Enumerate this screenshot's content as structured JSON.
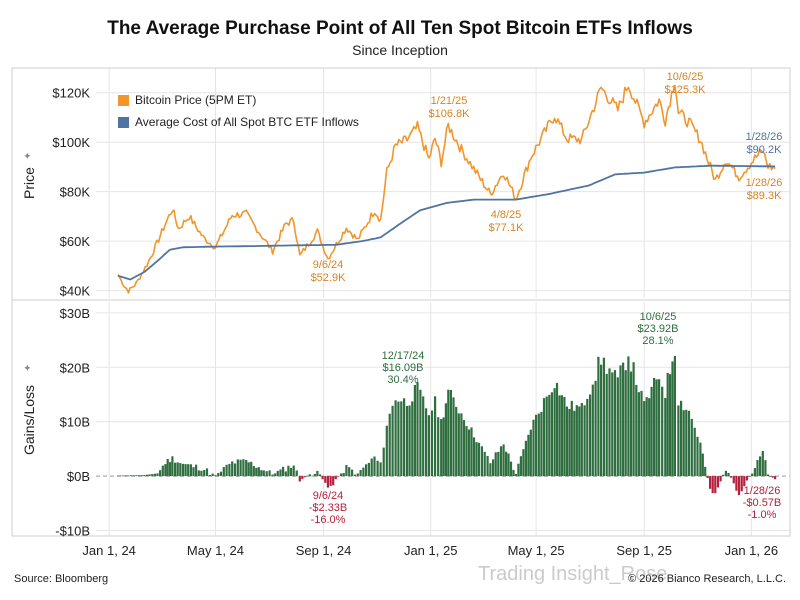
{
  "title": "The Average Purchase Point of All Ten Spot Bitcoin ETFs Inflows",
  "subtitle": "Since Inception",
  "source": "Source: Bloomberg",
  "copyright": "© 2026 Bianco Research, L.L.C.",
  "watermark": "Trading Insight_Rose",
  "colors": {
    "price": "#f0962d",
    "cost": "#4f74a0",
    "gain": "#2f6e3f",
    "loss": "#b5203c",
    "axis_label_gain": "#2f6e3f",
    "axis_label_loss": "#b5203c",
    "price_annot": "#d88420",
    "cost_annot": "#4f74a0"
  },
  "chart_data": [
    {
      "type": "line",
      "ylabel": "Price",
      "ylim": [
        37000,
        130000
      ],
      "yticks": [
        40000,
        60000,
        80000,
        100000,
        120000
      ],
      "ytick_labels": [
        "$40K",
        "$60K",
        "$80K",
        "$100K",
        "$120K"
      ],
      "xlim": [
        "2024-01-11",
        "2026-01-31"
      ],
      "xticks": [
        "2024-01-01",
        "2024-05-01",
        "2024-09-01",
        "2025-01-01",
        "2025-05-01",
        "2025-09-01",
        "2026-01-01"
      ],
      "xtick_labels": [
        "Jan 1, 24",
        "May 1, 24",
        "Sep 1, 24",
        "Jan 1, 25",
        "May 1, 25",
        "Sep 1, 25",
        "Jan 1, 26"
      ],
      "legend_position": "top-left",
      "series": [
        {
          "name": "Bitcoin Price (5PM ET)",
          "points": [
            [
              "2024-01-11",
              46500
            ],
            [
              "2024-01-18",
              42000
            ],
            [
              "2024-01-23",
              39800
            ],
            [
              "2024-02-01",
              43000
            ],
            [
              "2024-02-15",
              51800
            ],
            [
              "2024-02-28",
              62000
            ],
            [
              "2024-03-05",
              67000
            ],
            [
              "2024-03-13",
              73000
            ],
            [
              "2024-03-20",
              65000
            ],
            [
              "2024-04-01",
              70000
            ],
            [
              "2024-04-17",
              61500
            ],
            [
              "2024-05-01",
              57500
            ],
            [
              "2024-05-20",
              70500
            ],
            [
              "2024-06-05",
              71000
            ],
            [
              "2024-06-25",
              61000
            ],
            [
              "2024-07-05",
              56000
            ],
            [
              "2024-07-20",
              67000
            ],
            [
              "2024-07-29",
              68500
            ],
            [
              "2024-08-05",
              54000
            ],
            [
              "2024-08-25",
              64000
            ],
            [
              "2024-09-06",
              52900
            ],
            [
              "2024-09-27",
              65500
            ],
            [
              "2024-10-10",
              60500
            ],
            [
              "2024-10-29",
              72500
            ],
            [
              "2024-11-05",
              68500
            ],
            [
              "2024-11-12",
              88000
            ],
            [
              "2024-11-22",
              98500
            ],
            [
              "2024-12-05",
              101000
            ],
            [
              "2024-12-17",
              106000
            ],
            [
              "2024-12-30",
              93000
            ],
            [
              "2025-01-06",
              101500
            ],
            [
              "2025-01-13",
              92000
            ],
            [
              "2025-01-21",
              106800
            ],
            [
              "2025-02-05",
              97000
            ],
            [
              "2025-02-25",
              86000
            ],
            [
              "2025-03-10",
              79000
            ],
            [
              "2025-03-25",
              88000
            ],
            [
              "2025-04-08",
              77100
            ],
            [
              "2025-04-25",
              94000
            ],
            [
              "2025-05-22",
              111000
            ],
            [
              "2025-06-05",
              101500
            ],
            [
              "2025-06-22",
              101000
            ],
            [
              "2025-07-14",
              122000
            ],
            [
              "2025-08-02",
              113000
            ],
            [
              "2025-08-14",
              123500
            ],
            [
              "2025-09-01",
              108000
            ],
            [
              "2025-09-18",
              117000
            ],
            [
              "2025-09-25",
              109000
            ],
            [
              "2025-10-06",
              125300
            ],
            [
              "2025-10-10",
              112000
            ],
            [
              "2025-10-22",
              108000
            ],
            [
              "2025-11-04",
              101000
            ],
            [
              "2025-11-21",
              84500
            ],
            [
              "2025-12-03",
              93000
            ],
            [
              "2025-12-18",
              86000
            ],
            [
              "2026-01-05",
              93500
            ],
            [
              "2026-01-14",
              96500
            ],
            [
              "2026-01-20",
              90500
            ],
            [
              "2026-01-28",
              89300
            ]
          ]
        },
        {
          "name": "Average Cost of All Spot BTC ETF Inflows",
          "points": [
            [
              "2024-01-11",
              46000
            ],
            [
              "2024-01-25",
              44500
            ],
            [
              "2024-02-10",
              47500
            ],
            [
              "2024-02-25",
              52000
            ],
            [
              "2024-03-10",
              56500
            ],
            [
              "2024-03-25",
              57500
            ],
            [
              "2024-05-01",
              57800
            ],
            [
              "2024-06-15",
              58000
            ],
            [
              "2024-08-01",
              58300
            ],
            [
              "2024-09-15",
              58500
            ],
            [
              "2024-10-15",
              60000
            ],
            [
              "2024-11-05",
              61500
            ],
            [
              "2024-11-25",
              66500
            ],
            [
              "2024-12-20",
              72500
            ],
            [
              "2025-01-20",
              75500
            ],
            [
              "2025-02-20",
              76800
            ],
            [
              "2025-04-08",
              76800
            ],
            [
              "2025-05-15",
              79000
            ],
            [
              "2025-06-30",
              82500
            ],
            [
              "2025-07-30",
              87000
            ],
            [
              "2025-09-01",
              87700
            ],
            [
              "2025-10-06",
              89800
            ],
            [
              "2025-11-15",
              90500
            ],
            [
              "2026-01-28",
              90200
            ]
          ]
        }
      ],
      "annotations": [
        {
          "date": "2024-09-06",
          "label": "9/6/24",
          "value": "$52.9K",
          "series": "price"
        },
        {
          "date": "2025-01-21",
          "label": "1/21/25",
          "value": "$106.8K",
          "series": "price"
        },
        {
          "date": "2025-04-08",
          "label": "4/8/25",
          "value": "$77.1K",
          "series": "price"
        },
        {
          "date": "2025-10-06",
          "label": "10/6/25",
          "value": "$125.3K",
          "series": "price"
        },
        {
          "date": "2026-01-28",
          "label": "1/28/26",
          "value": "$90.2K",
          "series": "cost"
        },
        {
          "date": "2026-01-28",
          "label": "1/28/26",
          "value": "$89.3K",
          "series": "price"
        }
      ]
    },
    {
      "type": "bar",
      "ylabel": "Gains/Loss",
      "ylim": [
        -11000000000,
        32000000000
      ],
      "yticks": [
        -10000000000,
        0,
        10000000000,
        20000000000,
        30000000000
      ],
      "ytick_labels": [
        "-$10B",
        "$0B",
        "$10B",
        "$20B",
        "$30B"
      ],
      "series": [
        {
          "name": "Gains/Loss",
          "points": [
            [
              "2024-01-11",
              0.1
            ],
            [
              "2024-02-10",
              0.2
            ],
            [
              "2024-02-25",
              0.5
            ],
            [
              "2024-03-05",
              2.5
            ],
            [
              "2024-03-13",
              3.3
            ],
            [
              "2024-03-25",
              2.2
            ],
            [
              "2024-04-15",
              1.5
            ],
            [
              "2024-05-01",
              0.2
            ],
            [
              "2024-05-20",
              2.5
            ],
            [
              "2024-06-05",
              2.8
            ],
            [
              "2024-06-25",
              1.2
            ],
            [
              "2024-07-05",
              0.3
            ],
            [
              "2024-07-29",
              2.1
            ],
            [
              "2024-08-05",
              -0.8
            ],
            [
              "2024-08-25",
              1.2
            ],
            [
              "2024-09-06",
              -2.33
            ],
            [
              "2024-09-27",
              1.6
            ],
            [
              "2024-10-10",
              0.5
            ],
            [
              "2024-10-29",
              3.5
            ],
            [
              "2024-11-05",
              2.0
            ],
            [
              "2024-11-12",
              9.5
            ],
            [
              "2024-11-22",
              14.5
            ],
            [
              "2024-12-05",
              13.5
            ],
            [
              "2024-12-17",
              16.09
            ],
            [
              "2024-12-30",
              11.5
            ],
            [
              "2025-01-06",
              13.5
            ],
            [
              "2025-01-13",
              10.0
            ],
            [
              "2025-01-21",
              15.5
            ],
            [
              "2025-02-05",
              11.5
            ],
            [
              "2025-02-25",
              6.0
            ],
            [
              "2025-03-10",
              2.5
            ],
            [
              "2025-03-25",
              6.0
            ],
            [
              "2025-04-08",
              0.4
            ],
            [
              "2025-04-25",
              9.0
            ],
            [
              "2025-05-22",
              17.5
            ],
            [
              "2025-06-05",
              13.0
            ],
            [
              "2025-06-22",
              12.5
            ],
            [
              "2025-07-14",
              21.5
            ],
            [
              "2025-08-02",
              17.5
            ],
            [
              "2025-08-14",
              22.5
            ],
            [
              "2025-09-01",
              13.0
            ],
            [
              "2025-09-18",
              18.5
            ],
            [
              "2025-09-25",
              15.5
            ],
            [
              "2025-10-06",
              23.92
            ],
            [
              "2025-10-10",
              14.0
            ],
            [
              "2025-10-22",
              12.0
            ],
            [
              "2025-11-04",
              6.0
            ],
            [
              "2025-11-15",
              -2.5
            ],
            [
              "2025-11-21",
              -3.5
            ],
            [
              "2025-12-03",
              1.5
            ],
            [
              "2025-12-18",
              -3.0
            ],
            [
              "2026-01-05",
              1.5
            ],
            [
              "2026-01-14",
              4.5
            ],
            [
              "2026-01-20",
              0.3
            ],
            [
              "2026-01-28",
              -0.57
            ]
          ]
        }
      ],
      "annotations": [
        {
          "date": "2024-09-06",
          "label": "9/6/24",
          "value": "-$2.33B",
          "pct": "-16.0%",
          "sign": "loss"
        },
        {
          "date": "2024-12-17",
          "label": "12/17/24",
          "value": "$16.09B",
          "pct": "30.4%",
          "sign": "gain"
        },
        {
          "date": "2025-10-06",
          "label": "10/6/25",
          "value": "$23.92B",
          "pct": "28.1%",
          "sign": "gain"
        },
        {
          "date": "2026-01-28",
          "label": "1/28/26",
          "value": "-$0.57B",
          "pct": "-1.0%",
          "sign": "loss"
        }
      ]
    }
  ]
}
